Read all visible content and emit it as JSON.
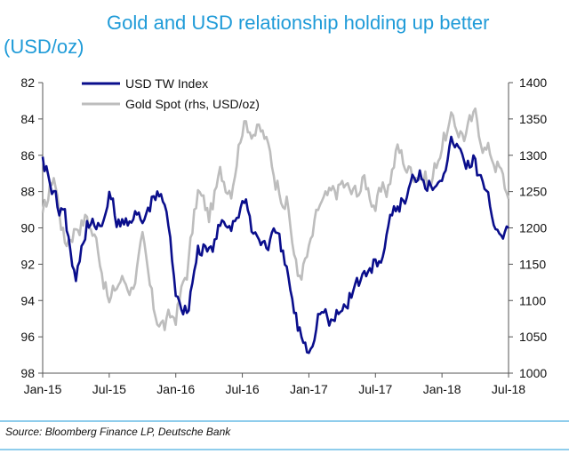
{
  "chart_data": {
    "type": "line",
    "title": "Gold and USD relationship holding up better",
    "subtitle": "(USD/oz)",
    "source": "Source: Bloomberg Finance LP, Deutsche Bank",
    "x_ticks": [
      "Jan-15",
      "Jul-15",
      "Jan-16",
      "Jul-16",
      "Jan-17",
      "Jul-17",
      "Jan-18",
      "Jul-18"
    ],
    "left_axis": {
      "ticks": [
        "82",
        "84",
        "86",
        "88",
        "90",
        "92",
        "94",
        "96",
        "98"
      ],
      "range": [
        82,
        98
      ],
      "inverted": true
    },
    "right_axis": {
      "ticks": [
        "1400",
        "1350",
        "1300",
        "1250",
        "1200",
        "1150",
        "1100",
        "1050",
        "1000"
      ],
      "range": [
        1000,
        1400
      ]
    },
    "legend_position": "top-left",
    "series": [
      {
        "name": "USD TW Index",
        "axis": "left",
        "color": "#0a0e8c",
        "points": [
          [
            "2015-01",
            85.7
          ],
          [
            "2015-02",
            88.3
          ],
          [
            "2015-03",
            89.5
          ],
          [
            "2015-04",
            93.0
          ],
          [
            "2015-05",
            89.5
          ],
          [
            "2015-06",
            90.2
          ],
          [
            "2015-07",
            88.5
          ],
          [
            "2015-08",
            90.0
          ],
          [
            "2015-09",
            89.0
          ],
          [
            "2015-10",
            89.8
          ],
          [
            "2015-11",
            88.2
          ],
          [
            "2015-12",
            88.5
          ],
          [
            "2016-01",
            93.2
          ],
          [
            "2016-02",
            94.5
          ],
          [
            "2016-03",
            91.0
          ],
          [
            "2016-04",
            91.5
          ],
          [
            "2016-05",
            90.0
          ],
          [
            "2016-06",
            89.6
          ],
          [
            "2016-07",
            88.5
          ],
          [
            "2016-08",
            90.2
          ],
          [
            "2016-09",
            90.8
          ],
          [
            "2016-10",
            90.5
          ],
          [
            "2016-11",
            92.5
          ],
          [
            "2016-12",
            95.5
          ],
          [
            "2017-01",
            96.5
          ],
          [
            "2017-02",
            94.2
          ],
          [
            "2017-03",
            95.3
          ],
          [
            "2017-04",
            94.5
          ],
          [
            "2017-05",
            93.2
          ],
          [
            "2017-06",
            92.6
          ],
          [
            "2017-07",
            92.0
          ],
          [
            "2017-08",
            90.8
          ],
          [
            "2017-09",
            88.8
          ],
          [
            "2017-10",
            88.0
          ],
          [
            "2017-11",
            86.5
          ],
          [
            "2017-12",
            87.5
          ],
          [
            "2018-01",
            86.5
          ],
          [
            "2018-02",
            85.2
          ],
          [
            "2018-03",
            86.3
          ],
          [
            "2018-04",
            86.2
          ],
          [
            "2018-05",
            88.5
          ],
          [
            "2018-06",
            89.8
          ],
          [
            "2018-07",
            90.0
          ]
        ]
      },
      {
        "name": "Gold Spot (rhs, USD/oz)",
        "axis": "right",
        "color": "#bdbdbd",
        "points": [
          [
            "2015-01",
            1210
          ],
          [
            "2015-02",
            1275
          ],
          [
            "2015-03",
            1180
          ],
          [
            "2015-04",
            1205
          ],
          [
            "2015-05",
            1215
          ],
          [
            "2015-06",
            1175
          ],
          [
            "2015-07",
            1095
          ],
          [
            "2015-08",
            1130
          ],
          [
            "2015-09",
            1120
          ],
          [
            "2015-10",
            1175
          ],
          [
            "2015-11",
            1085
          ],
          [
            "2015-12",
            1065
          ],
          [
            "2016-01",
            1080
          ],
          [
            "2016-02",
            1140
          ],
          [
            "2016-03",
            1250
          ],
          [
            "2016-04",
            1215
          ],
          [
            "2016-05",
            1270
          ],
          [
            "2016-06",
            1260
          ],
          [
            "2016-07",
            1345
          ],
          [
            "2016-08",
            1340
          ],
          [
            "2016-09",
            1325
          ],
          [
            "2016-10",
            1270
          ],
          [
            "2016-11",
            1240
          ],
          [
            "2016-12",
            1130
          ],
          [
            "2017-01",
            1165
          ],
          [
            "2017-02",
            1230
          ],
          [
            "2017-03",
            1240
          ],
          [
            "2017-04",
            1260
          ],
          [
            "2017-05",
            1245
          ],
          [
            "2017-06",
            1265
          ],
          [
            "2017-07",
            1235
          ],
          [
            "2017-08",
            1250
          ],
          [
            "2017-09",
            1310
          ],
          [
            "2017-10",
            1280
          ],
          [
            "2017-11",
            1280
          ],
          [
            "2017-12",
            1260
          ],
          [
            "2018-01",
            1320
          ],
          [
            "2018-02",
            1345
          ],
          [
            "2018-03",
            1330
          ],
          [
            "2018-04",
            1350
          ],
          [
            "2018-05",
            1310
          ],
          [
            "2018-06",
            1290
          ],
          [
            "2018-07",
            1240
          ]
        ]
      }
    ]
  }
}
